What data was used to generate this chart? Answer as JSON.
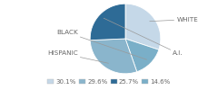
{
  "labels": [
    "WHITE",
    "BLACK",
    "HISPANIC",
    "A.I."
  ],
  "values": [
    30.1,
    14.6,
    29.6,
    25.7
  ],
  "colors": [
    "#c5d8e8",
    "#7aafc8",
    "#8ab5cc",
    "#2e6b96"
  ],
  "legend_order_labels": [
    "30.1%",
    "29.6%",
    "25.7%",
    "14.6%"
  ],
  "legend_order_colors": [
    "#c5d8e8",
    "#8ab5cc",
    "#2e6b96",
    "#7aafc8"
  ],
  "startangle": 90,
  "label_fontsize": 5.2,
  "legend_fontsize": 5.0,
  "background_color": "#ffffff",
  "text_color": "#666666",
  "line_color": "#999999",
  "label_positions": {
    "WHITE": [
      1.45,
      0.55
    ],
    "BLACK": [
      -1.35,
      0.18
    ],
    "HISPANIC": [
      -1.35,
      -0.42
    ],
    "A.I.": [
      1.35,
      -0.42
    ]
  },
  "arrow_starts": {
    "WHITE": [
      0.38,
      0.52
    ],
    "BLACK": [
      -0.28,
      0.38
    ],
    "HISPANIC": [
      -0.18,
      -0.55
    ],
    "A.I.": [
      0.55,
      -0.42
    ]
  }
}
